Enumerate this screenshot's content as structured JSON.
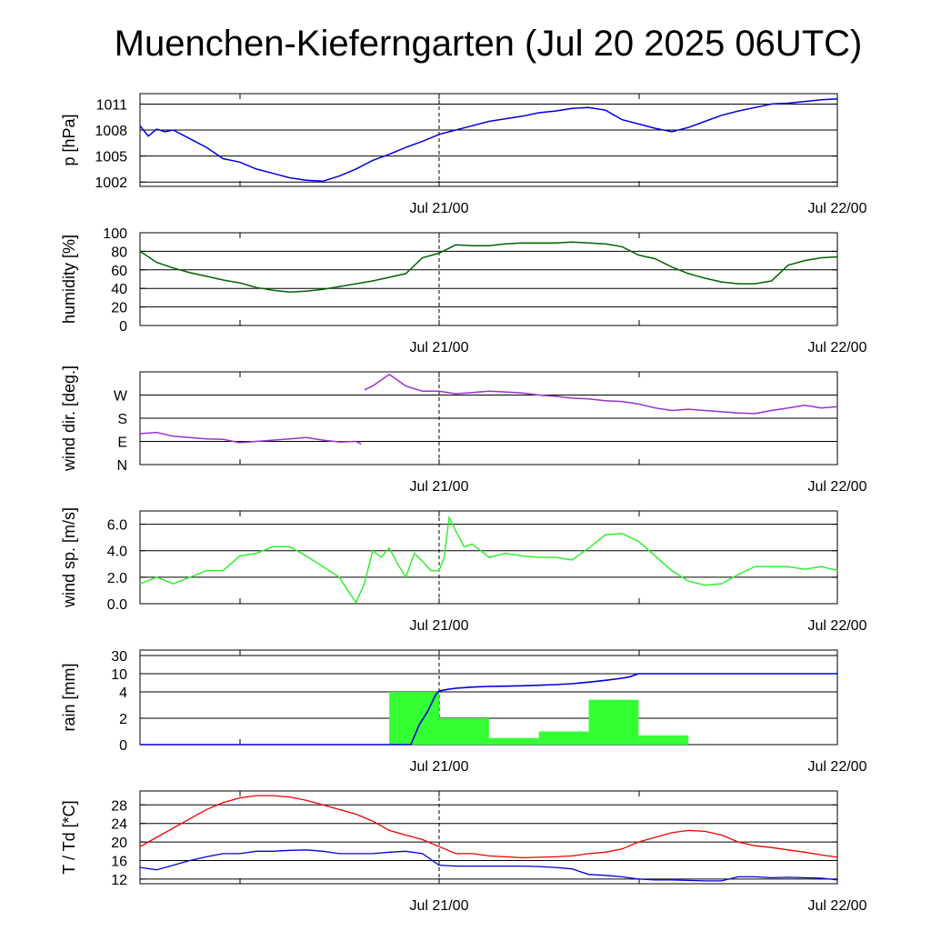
{
  "title": "Muenchen-Kieferngarten (Jul 20 2025 06UTC)",
  "chart_data": [
    {
      "type": "line",
      "id": "pressure",
      "ylabel": "p [hPa]",
      "x_ticks": [
        "Jul 21/00",
        "Jul 22/00"
      ],
      "xlim_hours": [
        0,
        42
      ],
      "ylim": [
        1001.5,
        1012.2
      ],
      "yticks": [
        1002,
        1005,
        1008,
        1011
      ],
      "grid_y": [
        1002,
        1005,
        1008,
        1011
      ],
      "colors": {
        "series": "#0000dd"
      },
      "series": [
        {
          "x": [
            0,
            0.5,
            1,
            1.5,
            2,
            3,
            4,
            5,
            6,
            7,
            8,
            9,
            10,
            11,
            12,
            13,
            14,
            15,
            16,
            17,
            18,
            19,
            20,
            21,
            22,
            23,
            24,
            25,
            26,
            27,
            28,
            29,
            30,
            31,
            32,
            33,
            34,
            35,
            36,
            37,
            38,
            39,
            40,
            41,
            42
          ],
          "y": [
            1008.5,
            1007.3,
            1008.1,
            1007.8,
            1008.0,
            1007.0,
            1006.0,
            1004.7,
            1004.3,
            1003.5,
            1003.0,
            1002.5,
            1002.2,
            1002.1,
            1002.7,
            1003.5,
            1004.5,
            1005.2,
            1006.0,
            1006.7,
            1007.5,
            1008.0,
            1008.5,
            1009.0,
            1009.3,
            1009.6,
            1010.0,
            1010.2,
            1010.5,
            1010.6,
            1010.3,
            1009.2,
            1008.7,
            1008.2,
            1007.8,
            1008.3,
            1009.0,
            1009.7,
            1010.2,
            1010.6,
            1011.0,
            1011.1,
            1011.3,
            1011.5,
            1011.6
          ]
        }
      ]
    },
    {
      "type": "line",
      "id": "humidity",
      "ylabel": "humidity [%]",
      "x_ticks": [
        "Jul 21/00",
        "Jul 22/00"
      ],
      "xlim_hours": [
        0,
        42
      ],
      "ylim": [
        0,
        100
      ],
      "yticks": [
        0,
        20,
        40,
        60,
        80,
        100
      ],
      "grid_y": [
        0,
        20,
        40,
        60,
        80,
        100
      ],
      "colors": {
        "series": "#006400"
      },
      "series": [
        {
          "x": [
            0,
            1,
            2,
            3,
            4,
            5,
            6,
            7,
            8,
            9,
            10,
            11,
            12,
            13,
            14,
            15,
            16,
            17,
            18,
            19,
            20,
            21,
            22,
            23,
            24,
            25,
            26,
            27,
            28,
            29,
            30,
            31,
            32,
            33,
            34,
            35,
            36,
            37,
            38,
            39,
            40,
            41,
            42
          ],
          "y": [
            80,
            68,
            62,
            57,
            53,
            49,
            46,
            41,
            38,
            36,
            37,
            39,
            42,
            45,
            48,
            52,
            56,
            73,
            78,
            87,
            86,
            86,
            88,
            89,
            89,
            89,
            90,
            89,
            88,
            85,
            76,
            72,
            63,
            56,
            51,
            47,
            45,
            45,
            48,
            65,
            70,
            73,
            74
          ]
        }
      ]
    },
    {
      "type": "line",
      "id": "wind_direction",
      "ylabel": "wind dir. [deg.]",
      "x_ticks": [
        "Jul 21/00",
        "Jul 22/00"
      ],
      "xlim_hours": [
        0,
        42
      ],
      "ylim": [
        0,
        360
      ],
      "yticks_labels": [
        "N",
        "E",
        "S",
        "W"
      ],
      "yticks": [
        0,
        90,
        180,
        270
      ],
      "grid_y": [
        0,
        90,
        180,
        270,
        360
      ],
      "colors": {
        "series": "#9932cc"
      },
      "series": [
        {
          "x": [
            0,
            1,
            2,
            3,
            4,
            5,
            6,
            7,
            8,
            9,
            10,
            11,
            12,
            13,
            13.3
          ],
          "y": [
            120,
            125,
            110,
            105,
            100,
            98,
            85,
            90,
            95,
            100,
            105,
            95,
            88,
            90,
            80
          ]
        },
        {
          "x": [
            13.5,
            14,
            15,
            16,
            17,
            18,
            19,
            20,
            21,
            22,
            23,
            24,
            25,
            26,
            27,
            28,
            29,
            30,
            31,
            32,
            33,
            34,
            35,
            36,
            37,
            38,
            39,
            40,
            41,
            42
          ],
          "y": [
            290,
            305,
            350,
            305,
            285,
            285,
            275,
            280,
            285,
            282,
            278,
            270,
            265,
            258,
            255,
            248,
            245,
            235,
            220,
            210,
            215,
            210,
            205,
            200,
            198,
            210,
            220,
            230,
            220,
            225
          ]
        }
      ]
    },
    {
      "type": "line",
      "id": "wind_speed",
      "ylabel": "wind sp. [m/s]",
      "x_ticks": [
        "Jul 21/00",
        "Jul 22/00"
      ],
      "xlim_hours": [
        0,
        42
      ],
      "ylim": [
        0,
        7
      ],
      "yticks": [
        0.0,
        2.0,
        4.0,
        6.0
      ],
      "yticks_labels": [
        "0.0",
        "2.0",
        "4.0",
        "6.0"
      ],
      "grid_y": [
        0,
        2,
        4,
        6
      ],
      "colors": {
        "series": "#33ee33"
      },
      "series": [
        {
          "x": [
            0,
            1,
            2,
            3,
            4,
            5,
            6,
            7,
            8,
            9,
            10,
            11,
            12,
            12.5,
            13,
            13.5,
            14,
            14.5,
            15,
            15.5,
            16,
            16.5,
            17,
            17.5,
            18,
            18.3,
            18.6,
            19,
            19.5,
            20,
            21,
            22,
            23,
            24,
            25,
            26,
            27,
            28,
            29,
            30,
            31,
            32,
            33,
            34,
            35,
            36,
            37,
            38,
            39,
            40,
            41,
            42
          ],
          "y": [
            1.5,
            2.0,
            1.5,
            2.0,
            2.5,
            2.5,
            3.6,
            3.8,
            4.3,
            4.3,
            3.6,
            2.8,
            2.0,
            1.0,
            0.1,
            1.5,
            4.0,
            3.5,
            4.2,
            3.0,
            2.0,
            3.8,
            3.2,
            2.5,
            2.5,
            3.5,
            6.5,
            5.5,
            4.3,
            4.5,
            3.5,
            3.8,
            3.6,
            3.5,
            3.5,
            3.3,
            4.2,
            5.2,
            5.3,
            4.7,
            3.6,
            2.5,
            1.7,
            1.4,
            1.5,
            2.2,
            2.8,
            2.8,
            2.8,
            2.6,
            2.8,
            2.5
          ]
        }
      ]
    },
    {
      "type": "bar",
      "id": "rain",
      "ylabel": "rain [mm]",
      "x_ticks": [
        "Jul 21/00",
        "Jul 22/00"
      ],
      "xlim_hours": [
        0,
        42
      ],
      "yticks_labels": [
        "0",
        "2",
        "4",
        "10",
        "30"
      ],
      "yticks": [
        0,
        2,
        4,
        10,
        30
      ],
      "grid_y": [
        0,
        2,
        4,
        10,
        30
      ],
      "colors": {
        "bars": "#33ff33",
        "accumulated": "#0000dd"
      },
      "bars": [
        {
          "start": 15,
          "end": 18,
          "value": 4.0
        },
        {
          "start": 18,
          "end": 21,
          "value": 2.0
        },
        {
          "start": 21,
          "end": 24,
          "value": 0.5
        },
        {
          "start": 24,
          "end": 27,
          "value": 1.0
        },
        {
          "start": 27,
          "end": 30,
          "value": 3.4
        },
        {
          "start": 30,
          "end": 33,
          "value": 0.7
        }
      ],
      "accumulated": {
        "x": [
          0,
          16.3,
          16.8,
          17.3,
          17.8,
          18,
          18.5,
          19,
          20,
          21,
          22,
          23,
          24,
          25,
          26,
          27,
          28,
          29,
          29.5,
          30,
          31,
          32,
          34,
          36,
          38,
          40,
          42
        ],
        "y": [
          0,
          0,
          1.5,
          2.5,
          3.8,
          4.3,
          4.8,
          5.2,
          5.6,
          5.8,
          5.9,
          6.0,
          6.2,
          6.4,
          6.7,
          7.2,
          7.8,
          8.5,
          9.0,
          10.0,
          10.0,
          10.0,
          10.0,
          10.0,
          10.0,
          10.0,
          10.0
        ]
      }
    },
    {
      "type": "line",
      "id": "temperature",
      "ylabel": "T / Td [*C]",
      "x_ticks": [
        "Jul 21/00",
        "Jul 22/00"
      ],
      "xlim_hours": [
        0,
        42
      ],
      "ylim": [
        11,
        31
      ],
      "yticks": [
        12,
        16,
        20,
        24,
        28
      ],
      "grid_y": [
        12,
        16,
        20,
        24,
        28
      ],
      "colors": {
        "T": "#ee0000",
        "Td": "#0000dd"
      },
      "series": [
        {
          "name": "T",
          "x": [
            0,
            1,
            2,
            3,
            4,
            5,
            6,
            7,
            8,
            9,
            10,
            11,
            12,
            13,
            14,
            15,
            16,
            17,
            18,
            19,
            20,
            21,
            22,
            23,
            24,
            25,
            26,
            27,
            28,
            29,
            30,
            31,
            32,
            33,
            34,
            35,
            36,
            37,
            38,
            39,
            40,
            41,
            42
          ],
          "y": [
            19.0,
            21.0,
            23.0,
            25.0,
            27.0,
            28.5,
            29.5,
            30.0,
            30.0,
            29.7,
            29.0,
            28.0,
            27.0,
            26.0,
            24.5,
            22.5,
            21.5,
            20.5,
            19.0,
            17.5,
            17.5,
            17.0,
            16.8,
            16.6,
            16.7,
            16.8,
            17.0,
            17.5,
            17.8,
            18.5,
            20.0,
            21.0,
            22.0,
            22.5,
            22.3,
            21.5,
            20.0,
            19.2,
            18.8,
            18.3,
            17.8,
            17.2,
            16.7
          ]
        },
        {
          "name": "Td",
          "x": [
            0,
            1,
            2,
            3,
            4,
            5,
            6,
            7,
            8,
            9,
            10,
            11,
            12,
            13,
            14,
            15,
            16,
            17,
            18,
            19,
            20,
            21,
            22,
            23,
            24,
            25,
            26,
            27,
            28,
            29,
            30,
            31,
            32,
            33,
            34,
            35,
            36,
            37,
            38,
            39,
            40,
            41,
            42
          ],
          "y": [
            14.5,
            14.0,
            15.0,
            16.0,
            16.8,
            17.5,
            17.5,
            18.0,
            18.0,
            18.2,
            18.3,
            18.0,
            17.5,
            17.5,
            17.5,
            17.8,
            18.0,
            17.5,
            15.0,
            14.8,
            14.8,
            14.8,
            14.8,
            14.8,
            14.7,
            14.5,
            14.2,
            13.0,
            12.8,
            12.5,
            12.0,
            11.8,
            11.8,
            11.7,
            11.6,
            11.6,
            12.5,
            12.5,
            12.3,
            12.4,
            12.3,
            12.2,
            11.8
          ]
        }
      ]
    }
  ]
}
